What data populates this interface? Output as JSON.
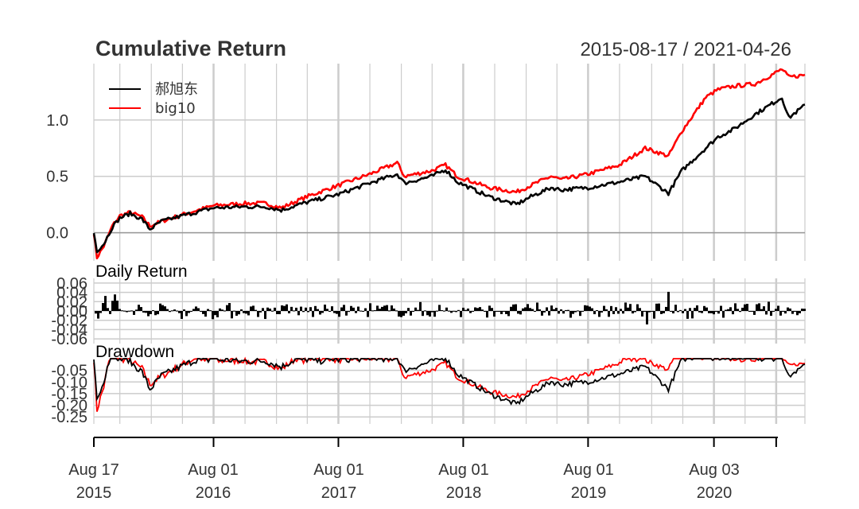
{
  "chart_data": {
    "type": "line",
    "title": "Cumulative Return",
    "date_range": "2015-08-17 / 2021-04-26",
    "x_axis": {
      "labels": [
        {
          "month": "Aug 17",
          "year": "2015"
        },
        {
          "month": "Aug 01",
          "year": "2016"
        },
        {
          "month": "Aug 01",
          "year": "2017"
        },
        {
          "month": "Aug 01",
          "year": "2018"
        },
        {
          "month": "Aug 01",
          "year": "2019"
        },
        {
          "month": "Aug 03",
          "year": "2020"
        }
      ]
    },
    "series_colors": {
      "郝旭东": "#000000",
      "big10": "#ff0000"
    },
    "legend": {
      "position": "top-left",
      "entries": [
        "郝旭东",
        "big10"
      ]
    },
    "panels": [
      {
        "name": "Cumulative Return",
        "ylim": [
          -0.25,
          1.5
        ],
        "yticks": [
          "0.0",
          "0.5",
          "1.0"
        ],
        "series": [
          {
            "name": "郝旭东",
            "points": [
              [
                "2015-08-17",
                0.0
              ],
              [
                "2015-08-26",
                -0.16
              ],
              [
                "2015-09-15",
                -0.1
              ],
              [
                "2015-10-10",
                0.05
              ],
              [
                "2015-11-01",
                0.13
              ],
              [
                "2015-12-01",
                0.17
              ],
              [
                "2016-01-05",
                0.12
              ],
              [
                "2016-01-28",
                0.03
              ],
              [
                "2016-03-01",
                0.1
              ],
              [
                "2016-05-01",
                0.15
              ],
              [
                "2016-08-01",
                0.22
              ],
              [
                "2016-11-01",
                0.23
              ],
              [
                "2017-01-01",
                0.23
              ],
              [
                "2017-02-15",
                0.2
              ],
              [
                "2017-05-01",
                0.27
              ],
              [
                "2017-08-01",
                0.34
              ],
              [
                "2017-11-01",
                0.44
              ],
              [
                "2018-01-20",
                0.52
              ],
              [
                "2018-02-10",
                0.44
              ],
              [
                "2018-05-01",
                0.5
              ],
              [
                "2018-06-10",
                0.56
              ],
              [
                "2018-07-15",
                0.45
              ],
              [
                "2018-10-15",
                0.32
              ],
              [
                "2019-01-03",
                0.25
              ],
              [
                "2019-02-15",
                0.32
              ],
              [
                "2019-04-15",
                0.4
              ],
              [
                "2019-05-15",
                0.38
              ],
              [
                "2019-08-01",
                0.4
              ],
              [
                "2019-11-01",
                0.45
              ],
              [
                "2020-01-15",
                0.5
              ],
              [
                "2020-03-23",
                0.35
              ],
              [
                "2020-05-01",
                0.55
              ],
              [
                "2020-07-10",
                0.75
              ],
              [
                "2020-08-15",
                0.85
              ],
              [
                "2020-10-01",
                0.92
              ],
              [
                "2020-12-01",
                1.05
              ],
              [
                "2021-02-18",
                1.2
              ],
              [
                "2021-03-10",
                1.02
              ],
              [
                "2021-04-26",
                1.13
              ]
            ]
          },
          {
            "name": "big10",
            "points": [
              [
                "2015-08-17",
                0.0
              ],
              [
                "2015-08-26",
                -0.22
              ],
              [
                "2015-09-15",
                -0.12
              ],
              [
                "2015-10-10",
                0.06
              ],
              [
                "2015-11-01",
                0.15
              ],
              [
                "2015-12-01",
                0.18
              ],
              [
                "2016-01-05",
                0.14
              ],
              [
                "2016-01-28",
                0.06
              ],
              [
                "2016-03-01",
                0.1
              ],
              [
                "2016-05-01",
                0.16
              ],
              [
                "2016-08-01",
                0.24
              ],
              [
                "2016-11-01",
                0.26
              ],
              [
                "2017-01-01",
                0.26
              ],
              [
                "2017-02-15",
                0.22
              ],
              [
                "2017-05-01",
                0.32
              ],
              [
                "2017-08-01",
                0.42
              ],
              [
                "2017-11-01",
                0.52
              ],
              [
                "2018-01-20",
                0.62
              ],
              [
                "2018-02-10",
                0.5
              ],
              [
                "2018-05-01",
                0.55
              ],
              [
                "2018-06-10",
                0.6
              ],
              [
                "2018-07-15",
                0.5
              ],
              [
                "2018-10-15",
                0.4
              ],
              [
                "2019-01-03",
                0.36
              ],
              [
                "2019-02-15",
                0.42
              ],
              [
                "2019-04-15",
                0.5
              ],
              [
                "2019-05-15",
                0.47
              ],
              [
                "2019-08-01",
                0.52
              ],
              [
                "2019-11-01",
                0.6
              ],
              [
                "2020-01-15",
                0.75
              ],
              [
                "2020-03-23",
                0.68
              ],
              [
                "2020-05-01",
                0.9
              ],
              [
                "2020-07-10",
                1.2
              ],
              [
                "2020-08-15",
                1.27
              ],
              [
                "2020-10-01",
                1.3
              ],
              [
                "2020-12-01",
                1.32
              ],
              [
                "2021-02-18",
                1.45
              ],
              [
                "2021-03-10",
                1.38
              ],
              [
                "2021-04-26",
                1.4
              ]
            ]
          }
        ]
      },
      {
        "name": "Daily Return",
        "ylim": [
          -0.07,
          0.07
        ],
        "yticks": [
          "0.06",
          "0.04",
          "0.02",
          "0.00",
          "-0.02",
          "-0.04",
          "-0.06"
        ]
      },
      {
        "name": "Drawdown",
        "ylim": [
          -0.28,
          0.0
        ],
        "yticks": [
          "-0.05",
          "-0.10",
          "-0.15",
          "-0.20",
          "-0.25"
        ]
      }
    ]
  }
}
